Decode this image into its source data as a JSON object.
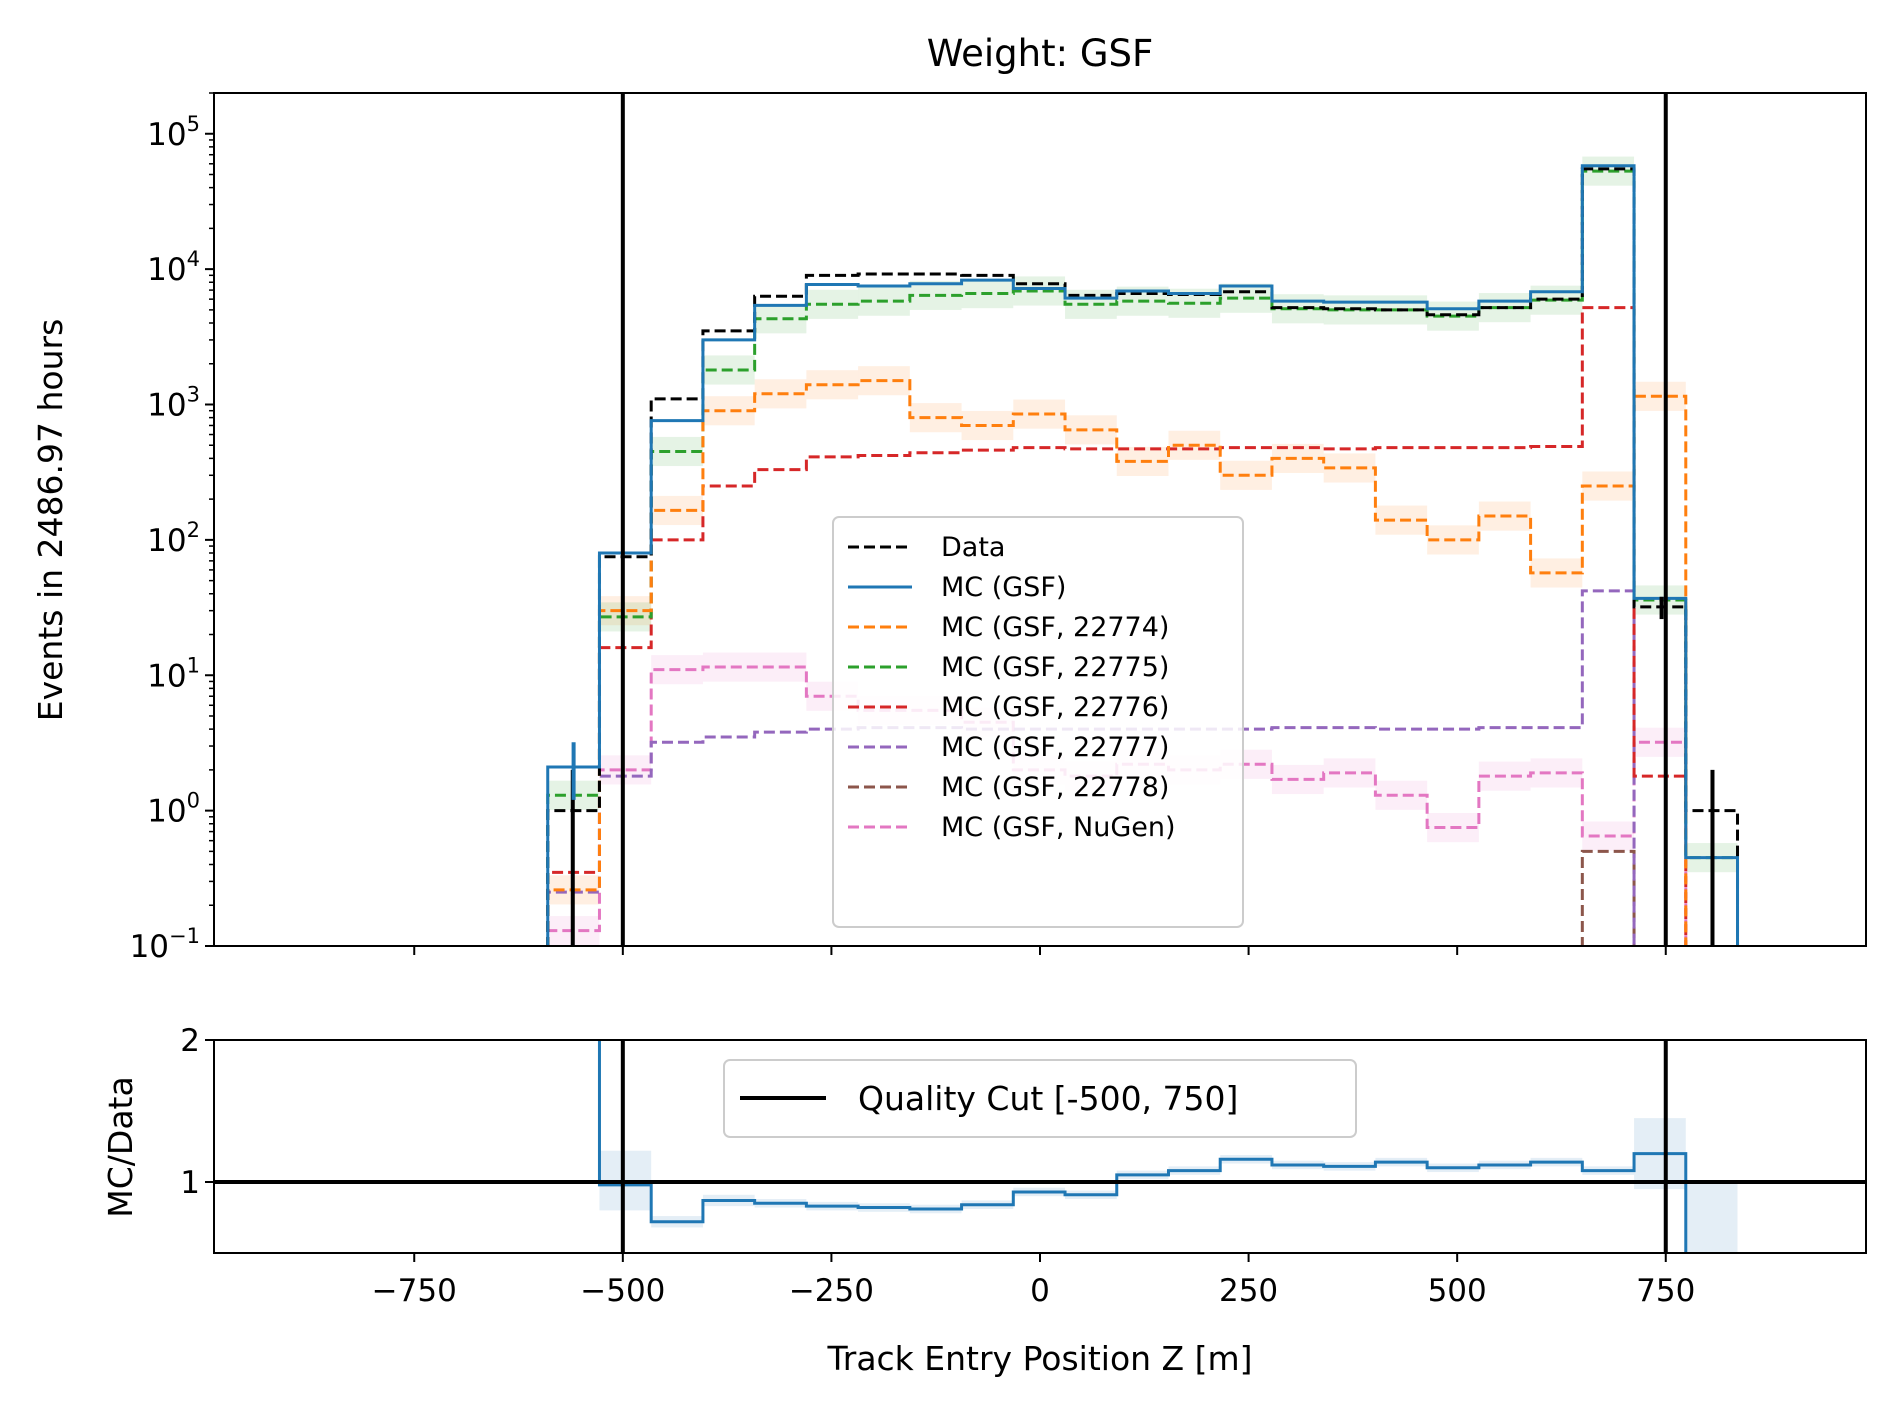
{
  "chart_data": [
    {
      "type": "line",
      "subtype": "step-histogram",
      "title": "Weight: GSF",
      "xlabel": "",
      "ylabel": "Events in 2486.97 hours",
      "yscale": "log",
      "ylim": [
        0.1,
        200000
      ],
      "xlim": [
        -990,
        990
      ],
      "yticks": [
        {
          "base": "10",
          "exp": "−1"
        },
        {
          "base": "10",
          "exp": "0"
        },
        {
          "base": "10",
          "exp": "1"
        },
        {
          "base": "10",
          "exp": "2"
        },
        {
          "base": "10",
          "exp": "3"
        },
        {
          "base": "10",
          "exp": "4"
        },
        {
          "base": "10",
          "exp": "5"
        }
      ],
      "bin_edges": [
        -590,
        -528,
        -466,
        -404,
        -342,
        -280,
        -218,
        -156,
        -94,
        -32,
        30,
        92,
        154,
        216,
        278,
        340,
        402,
        464,
        526,
        588,
        650,
        712,
        774,
        836
      ],
      "vlines": [
        -500,
        750
      ],
      "legend_position": "center",
      "series": [
        {
          "name": "Data",
          "color": "#000000",
          "dash": true,
          "values": [
            1,
            75,
            1100,
            3500,
            6300,
            9000,
            9200,
            9200,
            9000,
            7800,
            6400,
            6600,
            6500,
            6800,
            5200,
            5100,
            5000,
            4600,
            5200,
            6000,
            55000,
            32,
            1
          ]
        },
        {
          "name": "MC (GSF)",
          "color": "#1f77b4",
          "dash": false,
          "values": [
            2.1,
            80,
            760,
            3000,
            5400,
            7700,
            7500,
            7800,
            8300,
            7200,
            6100,
            6900,
            6600,
            7500,
            5800,
            5700,
            5700,
            5100,
            5800,
            6800,
            58000,
            37,
            0.45
          ]
        },
        {
          "name": "MC (GSF, 22774)",
          "color": "#ff7f0e",
          "dash": true,
          "band": true,
          "values": [
            0.26,
            30,
            165,
            900,
            1200,
            1400,
            1500,
            800,
            700,
            850,
            650,
            380,
            500,
            300,
            400,
            340,
            140,
            100,
            150,
            57,
            250,
            1150,
            null
          ]
        },
        {
          "name": "MC (GSF, 22775)",
          "color": "#2ca02c",
          "dash": true,
          "band": true,
          "values": [
            1.3,
            27,
            450,
            1800,
            4300,
            5500,
            5800,
            6400,
            6600,
            6900,
            5500,
            5800,
            5600,
            6100,
            5100,
            5000,
            5000,
            4500,
            5200,
            5900,
            53000,
            36,
            0.45
          ]
        },
        {
          "name": "MC (GSF, 22776)",
          "color": "#d62728",
          "dash": true,
          "values": [
            0.35,
            16,
            100,
            250,
            330,
            410,
            420,
            440,
            460,
            480,
            470,
            470,
            470,
            480,
            480,
            470,
            480,
            480,
            480,
            490,
            5200,
            1.8,
            null
          ]
        },
        {
          "name": "MC (GSF, 22777)",
          "color": "#9467bd",
          "dash": true,
          "values": [
            0.25,
            1.8,
            3.2,
            3.5,
            3.8,
            4.0,
            4.1,
            4.1,
            4.0,
            4.0,
            4.0,
            4.0,
            4.0,
            4.0,
            4.1,
            4.1,
            4.0,
            4.0,
            4.1,
            4.1,
            42,
            null,
            null
          ]
        },
        {
          "name": "MC (GSF, 22778)",
          "color": "#8c564b",
          "dash": true,
          "values": [
            null,
            null,
            null,
            null,
            null,
            null,
            null,
            null,
            null,
            null,
            null,
            null,
            null,
            null,
            null,
            null,
            null,
            null,
            null,
            null,
            0.5,
            null,
            null
          ]
        },
        {
          "name": "MC (GSF, NuGen)",
          "color": "#e377c2",
          "dash": true,
          "band": true,
          "values": [
            0.13,
            2.0,
            11,
            11.5,
            11.5,
            7,
            5.5,
            5.5,
            4.5,
            2.0,
            1.8,
            2.2,
            2.0,
            2.2,
            1.7,
            1.9,
            1.3,
            0.75,
            1.8,
            1.9,
            0.65,
            3.2,
            null
          ]
        }
      ],
      "data_errorbars": [
        {
          "x": -560,
          "y": 1,
          "yerr_low": 0.1,
          "yerr_high": 2
        },
        {
          "x": 745,
          "y": 32,
          "yerr_low": 26,
          "yerr_high": 38
        },
        {
          "x": 806,
          "y": 1,
          "yerr_low": 0.1,
          "yerr_high": 2
        }
      ],
      "mc_errorbars": [
        {
          "x": -559,
          "y": 2.1,
          "yerr_low": 1.2,
          "yerr_high": 3.2
        }
      ]
    },
    {
      "type": "line",
      "subtype": "ratio-step",
      "xlabel": "Track Entry Position Z [m]",
      "ylabel": "MC/Data",
      "ylim": [
        0.5,
        2
      ],
      "xlim": [
        -990,
        990
      ],
      "xticks": [
        "−750",
        "−500",
        "−250",
        "0",
        "250",
        "500",
        "750"
      ],
      "xtick_values": [
        -750,
        -500,
        -250,
        0,
        250,
        500,
        750
      ],
      "yticks": [
        "1",
        "2"
      ],
      "ytick_values": [
        1,
        2
      ],
      "hline": 1,
      "vlines": [
        -500,
        750
      ],
      "legend_position": "top-center",
      "legend_label": "Quality Cut [-500, 750]",
      "ratio_color": "#1f77b4",
      "bin_edges": [
        -528,
        -466,
        -404,
        -342,
        -280,
        -218,
        -156,
        -94,
        -32,
        30,
        92,
        154,
        216,
        278,
        340,
        402,
        464,
        526,
        588,
        650,
        712,
        774
      ],
      "ratio": [
        0.98,
        0.72,
        0.87,
        0.85,
        0.83,
        0.82,
        0.81,
        0.84,
        0.93,
        0.91,
        1.05,
        1.08,
        1.16,
        1.12,
        1.11,
        1.14,
        1.1,
        1.12,
        1.14,
        1.08,
        1.2
      ],
      "band_low": [
        0.8,
        0.68,
        0.83,
        0.82,
        0.8,
        0.79,
        0.78,
        0.81,
        0.9,
        0.88,
        1.02,
        1.05,
        1.13,
        1.09,
        1.08,
        1.11,
        1.07,
        1.09,
        1.11,
        1.05,
        0.95
      ],
      "band_high": [
        1.22,
        0.76,
        0.91,
        0.88,
        0.86,
        0.85,
        0.84,
        0.87,
        0.96,
        0.94,
        1.08,
        1.11,
        1.19,
        1.15,
        1.14,
        1.17,
        1.13,
        1.15,
        1.17,
        1.11,
        1.45
      ],
      "tail_band": {
        "x0": 774,
        "x1": 836,
        "low": 0.5,
        "high": 1.0
      }
    }
  ]
}
